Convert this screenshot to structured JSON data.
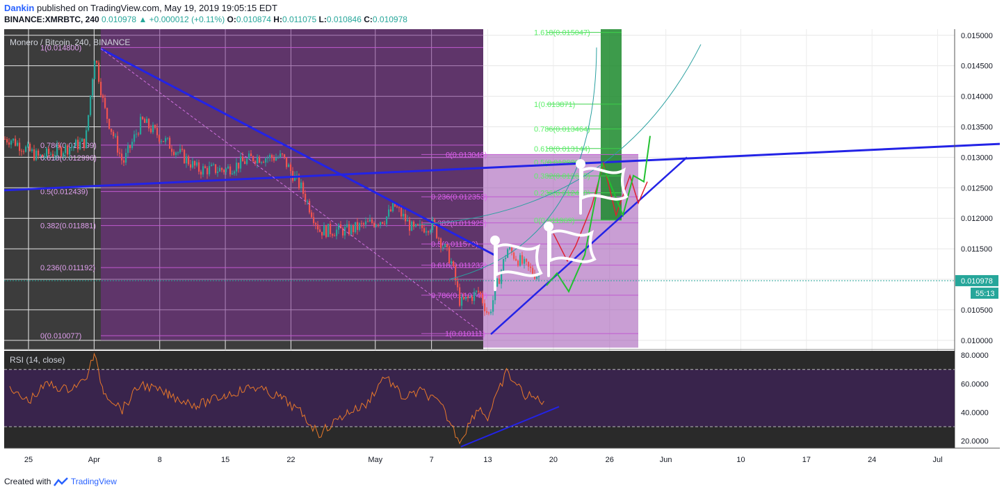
{
  "header": {
    "author": "Dankin",
    "published": "published on TradingView.com, May 19, 2019 19:05:15 EDT",
    "symbol": "BINANCE:XMRBTC, 240",
    "last": "0.010978",
    "change_arrow": "▲",
    "change": "+0.000012 (+0.11%)",
    "o_label": "O:",
    "o": "0.010874",
    "h_label": "H:",
    "h": "0.011075",
    "l_label": "L:",
    "l": "0.010846",
    "c_label": "C:",
    "c": "0.010978"
  },
  "footer": {
    "created_with": "Created with",
    "brand": "TradingView"
  },
  "colors": {
    "up": "#26a69a",
    "down": "#ef5350",
    "fib_purple": "#9c27b0",
    "fib_green": "#4caf50",
    "trendline": "#2323e6",
    "rsi": "#e8782a"
  },
  "chart_data": {
    "type": "candlestick",
    "title": "Monero / Bitcoin, 240, BINANCE",
    "y_axis_labels": [
      "0.015000",
      "0.014500",
      "0.014000",
      "0.013500",
      "0.013000",
      "0.012500",
      "0.012000",
      "0.011500",
      "0.011000",
      "0.010500",
      "0.010000"
    ],
    "ylim": [
      0.00985,
      0.0151
    ],
    "last_price_label": "0.010978",
    "countdown_label": "55:13",
    "x_axis_labels": [
      "25",
      "Apr",
      "8",
      "15",
      "22",
      "May",
      "7",
      "13",
      "20",
      "26",
      "Jun",
      "10",
      "17",
      "24",
      "Jul"
    ],
    "price_points": [
      [
        "Mar 23",
        0.0133
      ],
      [
        "Mar 26",
        0.013
      ],
      [
        "Mar 29",
        0.01315
      ],
      [
        "Mar 31",
        0.01325
      ],
      [
        "Apr 1",
        0.0147
      ],
      [
        "Apr 2",
        0.0138
      ],
      [
        "Apr 4",
        0.0129
      ],
      [
        "Apr 6",
        0.0136
      ],
      [
        "Apr 9",
        0.0132
      ],
      [
        "Apr 12",
        0.0128
      ],
      [
        "Apr 15",
        0.0128
      ],
      [
        "Apr 18",
        0.013
      ],
      [
        "Apr 21",
        0.013
      ],
      [
        "Apr 23",
        0.0125
      ],
      [
        "Apr 25",
        0.0118
      ],
      [
        "Apr 28",
        0.0118
      ],
      [
        "Apr 30",
        0.0119
      ],
      [
        "May 2",
        0.012
      ],
      [
        "May 3",
        0.0122
      ],
      [
        "May 5",
        0.0118
      ],
      [
        "May 7",
        0.0119
      ],
      [
        "May 9",
        0.0113
      ],
      [
        "May 10",
        0.0106
      ],
      [
        "May 12",
        0.0108
      ],
      [
        "May 13",
        0.0104
      ],
      [
        "May 15",
        0.0115
      ],
      [
        "May 17",
        0.0112
      ],
      [
        "May 19",
        0.01098
      ]
    ],
    "fib_left": {
      "levels": [
        {
          "ratio": "1",
          "value": "1(0.014800)",
          "price": 0.0148
        },
        {
          "ratio": "0.786",
          "value": "0.786(0.013199)",
          "price": 0.013199
        },
        {
          "ratio": "0.618",
          "value": "0.618(0.012996)",
          "price": 0.012996
        },
        {
          "ratio": "0.5",
          "value": "0.5(0.012439)",
          "price": 0.012439
        },
        {
          "ratio": "0.382",
          "value": "0.382(0.011881)",
          "price": 0.011881
        },
        {
          "ratio": "0.236",
          "value": "0.236(0.011192)",
          "price": 0.011192
        },
        {
          "ratio": "0",
          "value": "0(0.010077)",
          "price": 0.010077
        }
      ]
    },
    "fib_mid": {
      "levels": [
        {
          "value": "0(0.013046)",
          "price": 0.013046
        },
        {
          "value": "0.236(0.012353)",
          "price": 0.012353
        },
        {
          "value": "0.382(0.011925)",
          "price": 0.011925
        },
        {
          "value": "0.5(0.011579)",
          "price": 0.011579
        },
        {
          "value": "0.618(0.011232)",
          "price": 0.011232
        },
        {
          "value": "0.786(0.010740)",
          "price": 0.01074
        },
        {
          "value": "1(0.010111)",
          "price": 0.010111
        }
      ]
    },
    "fib_green": {
      "levels": [
        {
          "value": "1.618(0.015047)",
          "price": 0.015047
        },
        {
          "value": "1(0.013871)",
          "price": 0.013871
        },
        {
          "value": "0.786(0.013464)",
          "price": 0.013464
        },
        {
          "value": "0.618(0.013144)",
          "price": 0.013144
        },
        {
          "value": "0.5(0.012920)",
          "price": 0.01292
        },
        {
          "value": "0.382(0.012695)",
          "price": 0.012695
        },
        {
          "value": "0.236(0.012418)",
          "price": 0.012418
        },
        {
          "value": "0(0.011969)",
          "price": 0.011969
        }
      ]
    },
    "rsi": {
      "title": "RSI (14, close)",
      "y_axis_labels": [
        "80.0000",
        "60.0000",
        "40.0000",
        "20.0000"
      ],
      "ylim": [
        15,
        83
      ],
      "upper": 70,
      "lower": 30,
      "points": [
        [
          "Mar 23",
          55
        ],
        [
          "Mar 25",
          48
        ],
        [
          "Mar 27",
          60
        ],
        [
          "Mar 29",
          56
        ],
        [
          "Mar 31",
          62
        ],
        [
          "Apr 1",
          80
        ],
        [
          "Apr 2",
          55
        ],
        [
          "Apr 4",
          42
        ],
        [
          "Apr 6",
          60
        ],
        [
          "Apr 9",
          52
        ],
        [
          "Apr 12",
          45
        ],
        [
          "Apr 15",
          52
        ],
        [
          "Apr 18",
          58
        ],
        [
          "Apr 21",
          50
        ],
        [
          "Apr 23",
          40
        ],
        [
          "Apr 25",
          25
        ],
        [
          "Apr 28",
          40
        ],
        [
          "Apr 30",
          45
        ],
        [
          "May 2",
          66
        ],
        [
          "May 4",
          50
        ],
        [
          "May 6",
          55
        ],
        [
          "May 8",
          45
        ],
        [
          "May 10",
          20
        ],
        [
          "May 12",
          44
        ],
        [
          "May 13",
          36
        ],
        [
          "May 15",
          68
        ],
        [
          "May 17",
          52
        ],
        [
          "May 19",
          48
        ]
      ]
    }
  }
}
